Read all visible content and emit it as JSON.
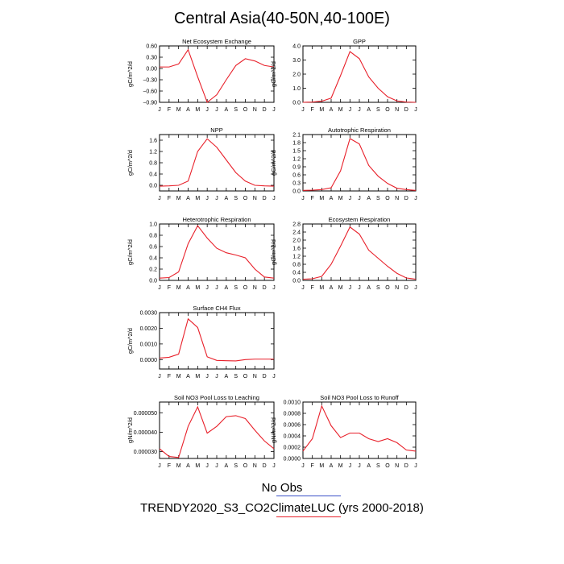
{
  "title": "Central Asia(40-50N,40-100E)",
  "months": [
    "J",
    "F",
    "M",
    "A",
    "M",
    "J",
    "J",
    "A",
    "S",
    "O",
    "N",
    "D",
    "J"
  ],
  "colors": {
    "model": "#e8202a",
    "obs": "#3a50c8"
  },
  "legend": {
    "obs_label": "No Obs",
    "model_label": "TRENDY2020_S3_CO2ClimateLUC (yrs 2000-2018)"
  },
  "chart_data": [
    {
      "type": "line",
      "title": "Net Ecosystem Exchange",
      "ylabel": "gC/m^2/d",
      "ylim": [
        -0.9,
        0.6
      ],
      "yticks": [
        {
          "v": 0.6,
          "t": "0.60"
        },
        {
          "v": 0.3,
          "t": "0.30"
        },
        {
          "v": 0,
          "t": "0.00"
        },
        {
          "v": -0.3,
          "t": "−0.30"
        },
        {
          "v": -0.6,
          "t": "−0.60"
        },
        {
          "v": -0.9,
          "t": "−0.90"
        }
      ],
      "values": [
        0.04,
        0.04,
        0.12,
        0.5,
        -0.22,
        -0.9,
        -0.7,
        -0.3,
        0.08,
        0.26,
        0.2,
        0.08,
        0.04
      ]
    },
    {
      "type": "line",
      "title": "GPP",
      "ylabel": "gC/m^2/d",
      "ylim": [
        0,
        4
      ],
      "yticks": [
        {
          "v": 0,
          "t": "0.0"
        },
        {
          "v": 1,
          "t": "1.0"
        },
        {
          "v": 2,
          "t": "2.0"
        },
        {
          "v": 3,
          "t": "3.0"
        },
        {
          "v": 4,
          "t": "4.0"
        }
      ],
      "values": [
        0.0,
        0.02,
        0.08,
        0.3,
        1.9,
        3.6,
        3.1,
        1.8,
        1.0,
        0.4,
        0.1,
        0.02,
        0.0
      ]
    },
    {
      "type": "line",
      "title": "NPP",
      "ylabel": "gC/m^2/d",
      "ylim": [
        -0.2,
        1.8
      ],
      "yticks": [
        {
          "v": 0,
          "t": "0.0"
        },
        {
          "v": 0.4,
          "t": "0.4"
        },
        {
          "v": 0.8,
          "t": "0.8"
        },
        {
          "v": 1.2,
          "t": "1.2"
        },
        {
          "v": 1.6,
          "t": "1.6"
        }
      ],
      "values": [
        -0.03,
        -0.02,
        0.0,
        0.15,
        1.2,
        1.65,
        1.35,
        0.9,
        0.45,
        0.15,
        0.0,
        -0.02,
        -0.03
      ]
    },
    {
      "type": "line",
      "title": "Autotrophic Respiration",
      "ylabel": "gC/m^2/d",
      "ylim": [
        0,
        2.1
      ],
      "yticks": [
        {
          "v": 0,
          "t": "0.0"
        },
        {
          "v": 0.3,
          "t": "0.3"
        },
        {
          "v": 0.6,
          "t": "0.6"
        },
        {
          "v": 0.9,
          "t": "0.9"
        },
        {
          "v": 1.2,
          "t": "1.2"
        },
        {
          "v": 1.5,
          "t": "1.5"
        },
        {
          "v": 1.8,
          "t": "1.8"
        },
        {
          "v": 2.1,
          "t": "2.1"
        }
      ],
      "values": [
        0.02,
        0.03,
        0.05,
        0.12,
        0.75,
        1.95,
        1.75,
        0.95,
        0.55,
        0.28,
        0.1,
        0.05,
        0.02
      ]
    },
    {
      "type": "line",
      "title": "Heterotrophic Respiration",
      "ylabel": "gC/m^2/d",
      "ylim": [
        0,
        1.0
      ],
      "yticks": [
        {
          "v": 0,
          "t": "0.0"
        },
        {
          "v": 0.2,
          "t": "0.2"
        },
        {
          "v": 0.4,
          "t": "0.4"
        },
        {
          "v": 0.6,
          "t": "0.6"
        },
        {
          "v": 0.8,
          "t": "0.8"
        },
        {
          "v": 1.0,
          "t": "1.0"
        }
      ],
      "values": [
        0.04,
        0.05,
        0.15,
        0.65,
        0.97,
        0.75,
        0.57,
        0.49,
        0.45,
        0.4,
        0.2,
        0.06,
        0.04
      ]
    },
    {
      "type": "line",
      "title": "Ecosystem Respiration",
      "ylabel": "gC/m^2/d",
      "ylim": [
        0,
        2.8
      ],
      "yticks": [
        {
          "v": 0,
          "t": "0.0"
        },
        {
          "v": 0.4,
          "t": "0.4"
        },
        {
          "v": 0.8,
          "t": "0.8"
        },
        {
          "v": 1.2,
          "t": "1.2"
        },
        {
          "v": 1.6,
          "t": "1.6"
        },
        {
          "v": 2.0,
          "t": "2.0"
        },
        {
          "v": 2.4,
          "t": "2.4"
        },
        {
          "v": 2.8,
          "t": "2.8"
        }
      ],
      "values": [
        0.06,
        0.08,
        0.2,
        0.8,
        1.7,
        2.65,
        2.3,
        1.5,
        1.1,
        0.7,
        0.35,
        0.12,
        0.06
      ]
    },
    {
      "type": "line",
      "title": "Surface CH4 Flux",
      "ylabel": "gC/m^2/d",
      "ylim": [
        -0.0006,
        0.003
      ],
      "yticks": [
        {
          "v": 0,
          "t": "0.0000"
        },
        {
          "v": 0.001,
          "t": "0.0010"
        },
        {
          "v": 0.002,
          "t": "0.0020"
        },
        {
          "v": 0.003,
          "t": "0.0030"
        }
      ],
      "values": [
        0.0001,
        0.00015,
        0.00035,
        0.0026,
        0.00205,
        0.00018,
        -5e-05,
        -7e-05,
        -8e-05,
        0.0,
        3e-05,
        3e-05,
        3e-05
      ]
    },
    {
      "type": "line",
      "title": "Soil NO3 Pool Loss to Leaching",
      "ylabel": "gN/m^2/d",
      "ylim": [
        2.65e-05,
        5.55e-05
      ],
      "yticks": [
        {
          "v": 3e-05,
          "t": "0.000030"
        },
        {
          "v": 4e-05,
          "t": "0.000040"
        },
        {
          "v": 5e-05,
          "t": "0.000050"
        }
      ],
      "values": [
        3.15e-05,
        2.75e-05,
        2.7e-05,
        4.3e-05,
        5.3e-05,
        3.95e-05,
        4.3e-05,
        4.8e-05,
        4.85e-05,
        4.7e-05,
        4.1e-05,
        3.55e-05,
        3.15e-05
      ]
    },
    {
      "type": "line",
      "title": "Soil NO3 Pool Loss to Runoff",
      "ylabel": "gN/m^2/d",
      "ylim": [
        0,
        0.001
      ],
      "yticks": [
        {
          "v": 0,
          "t": "0.0000"
        },
        {
          "v": 0.0002,
          "t": "0.0002"
        },
        {
          "v": 0.0004,
          "t": "0.0004"
        },
        {
          "v": 0.0006,
          "t": "0.0006"
        },
        {
          "v": 0.0008,
          "t": "0.0008"
        },
        {
          "v": 0.001,
          "t": "0.0010"
        }
      ],
      "values": [
        0.00013,
        0.00035,
        0.00093,
        0.00058,
        0.00037,
        0.00045,
        0.00045,
        0.00035,
        0.0003,
        0.00035,
        0.00028,
        0.00015,
        0.00013
      ]
    }
  ]
}
